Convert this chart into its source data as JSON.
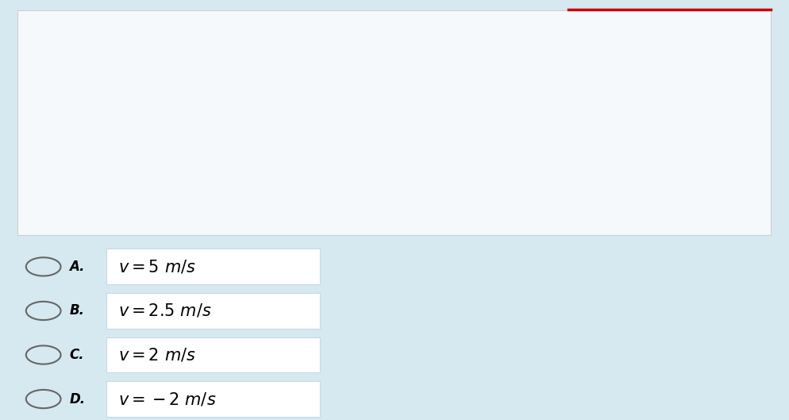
{
  "bg_color": "#d6e8f0",
  "question_bg": "#f5f9fc",
  "answer_bg": "#ffffff",
  "answer_border": "#c8d8e8",
  "text_color": "#000000",
  "red_line_color": "#cc0000",
  "font_size_body": 14,
  "font_size_formula": 15,
  "font_size_answer": 15,
  "font_size_label": 12,
  "option_labels": [
    "A.",
    "B.",
    "C.",
    "D."
  ],
  "option_texts": [
    "$v = 5\\ m/s$",
    "$v = 2.5\\ m/s$",
    "$v = 2\\ m/s$",
    "$v = -2\\ m/s$"
  ]
}
